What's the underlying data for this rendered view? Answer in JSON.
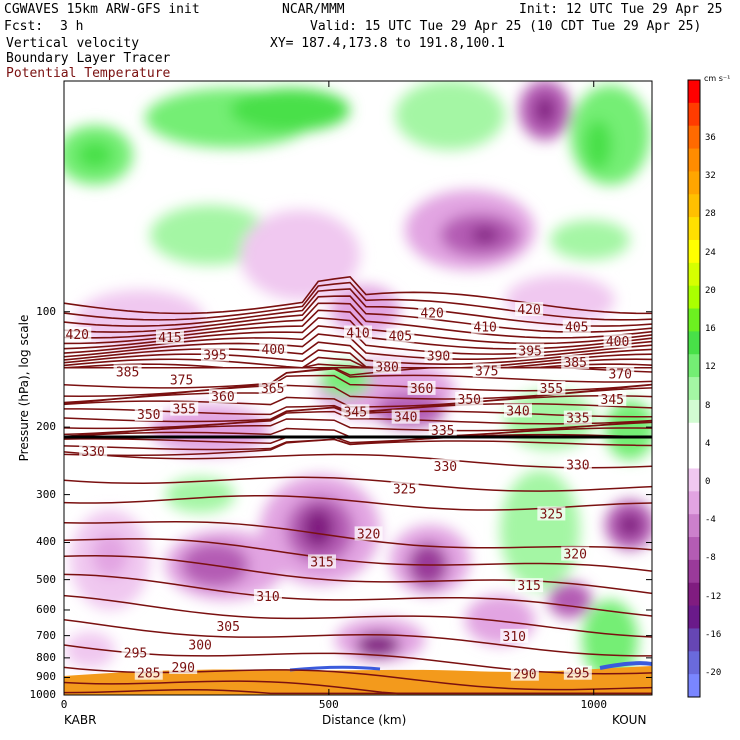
{
  "header": {
    "model": "CGWAVES 15km ARW-GFS init",
    "org": "NCAR/MMM",
    "init": "Init: 12 UTC Tue 29 Apr 25",
    "fcst_label": "Fcst:",
    "fcst_value": "3 h",
    "valid": "Valid: 15 UTC Tue 29 Apr 25 (10 CDT Tue 29 Apr 25)",
    "field1": "Vertical velocity",
    "field2": "Boundary Layer Tracer",
    "field3": "Potential Temperature",
    "xy": "XY= 187.4,173.8 to 191.8,100.1"
  },
  "colors": {
    "theta": "#7a1010",
    "field3_text": "#7a1010",
    "terrain": "#f39a1c"
  },
  "chart_data": {
    "type": "heatmap",
    "xlabel": "Distance (km)",
    "ylabel": "Pressure (hPa), log scale",
    "x_ticks": [
      "0",
      "500",
      "1000"
    ],
    "x_range": [
      0,
      1110
    ],
    "y_ticks": [
      "100",
      "200",
      "300",
      "400",
      "500",
      "600",
      "700",
      "800",
      "900",
      "1000"
    ],
    "y_scale": "log",
    "y_range_hpa": [
      1000,
      25
    ],
    "endpoints": {
      "left": "KABR",
      "right": "KOUN"
    },
    "colorbar": {
      "units": "cm s⁻¹",
      "tick_labels": [
        "36",
        "32",
        "28",
        "24",
        "20",
        "16",
        "12",
        "8",
        "4",
        "0",
        "-4",
        "-8",
        "-12",
        "-16",
        "-20"
      ],
      "colors": [
        "#ff0000",
        "#ff3c00",
        "#ff6a00",
        "#ff8c00",
        "#ffa500",
        "#ffc000",
        "#ffdf00",
        "#ffff00",
        "#d6ff00",
        "#aaff00",
        "#6cf020",
        "#48e048",
        "#74ee74",
        "#a4f6a4",
        "#d2fcd2",
        "#ffffff",
        "#ffffff",
        "#f0c8f0",
        "#e2a4e2",
        "#cc80cc",
        "#b45cb4",
        "#9a3a9a",
        "#801c80",
        "#6a1a8a",
        "#6646b4",
        "#6a6adc",
        "#7a86ff"
      ]
    },
    "theta_labels": [
      {
        "v": "420",
        "x": 25,
        "p": 115
      },
      {
        "v": "415",
        "x": 200,
        "p": 117
      },
      {
        "v": "395",
        "x": 285,
        "p": 130
      },
      {
        "v": "400",
        "x": 395,
        "p": 126
      },
      {
        "v": "410",
        "x": 555,
        "p": 114
      },
      {
        "v": "405",
        "x": 635,
        "p": 116
      },
      {
        "v": "420",
        "x": 695,
        "p": 101
      },
      {
        "v": "410",
        "x": 795,
        "p": 110
      },
      {
        "v": "420",
        "x": 878,
        "p": 99
      },
      {
        "v": "405",
        "x": 968,
        "p": 110
      },
      {
        "v": "400",
        "x": 1045,
        "p": 120
      },
      {
        "v": "390",
        "x": 707,
        "p": 131
      },
      {
        "v": "395",
        "x": 880,
        "p": 127
      },
      {
        "v": "385",
        "x": 965,
        "p": 136
      },
      {
        "v": "380",
        "x": 610,
        "p": 140
      },
      {
        "v": "375",
        "x": 798,
        "p": 143
      },
      {
        "v": "370",
        "x": 1050,
        "p": 146
      },
      {
        "v": "385",
        "x": 120,
        "p": 144
      },
      {
        "v": "375",
        "x": 222,
        "p": 151
      },
      {
        "v": "365",
        "x": 394,
        "p": 159
      },
      {
        "v": "360",
        "x": 300,
        "p": 167
      },
      {
        "v": "360",
        "x": 675,
        "p": 159
      },
      {
        "v": "355",
        "x": 920,
        "p": 159
      },
      {
        "v": "350",
        "x": 160,
        "p": 186
      },
      {
        "v": "355",
        "x": 227,
        "p": 180
      },
      {
        "v": "345",
        "x": 550,
        "p": 183
      },
      {
        "v": "340",
        "x": 645,
        "p": 189
      },
      {
        "v": "350",
        "x": 765,
        "p": 170
      },
      {
        "v": "345",
        "x": 1035,
        "p": 170
      },
      {
        "v": "340",
        "x": 857,
        "p": 182
      },
      {
        "v": "335",
        "x": 715,
        "p": 205
      },
      {
        "v": "335",
        "x": 970,
        "p": 190
      },
      {
        "v": "330",
        "x": 55,
        "p": 232
      },
      {
        "v": "330",
        "x": 720,
        "p": 254
      },
      {
        "v": "330",
        "x": 970,
        "p": 252
      },
      {
        "v": "325",
        "x": 643,
        "p": 291
      },
      {
        "v": "325",
        "x": 920,
        "p": 338
      },
      {
        "v": "320",
        "x": 575,
        "p": 381
      },
      {
        "v": "320",
        "x": 965,
        "p": 430
      },
      {
        "v": "315",
        "x": 487,
        "p": 451
      },
      {
        "v": "315",
        "x": 878,
        "p": 520
      },
      {
        "v": "310",
        "x": 385,
        "p": 555
      },
      {
        "v": "310",
        "x": 850,
        "p": 705
      },
      {
        "v": "305",
        "x": 310,
        "p": 664
      },
      {
        "v": "300",
        "x": 257,
        "p": 742
      },
      {
        "v": "295",
        "x": 135,
        "p": 780
      },
      {
        "v": "290",
        "x": 225,
        "p": 850
      },
      {
        "v": "285",
        "x": 160,
        "p": 880
      },
      {
        "v": "290",
        "x": 870,
        "p": 885
      },
      {
        "v": "295",
        "x": 970,
        "p": 880
      }
    ]
  }
}
